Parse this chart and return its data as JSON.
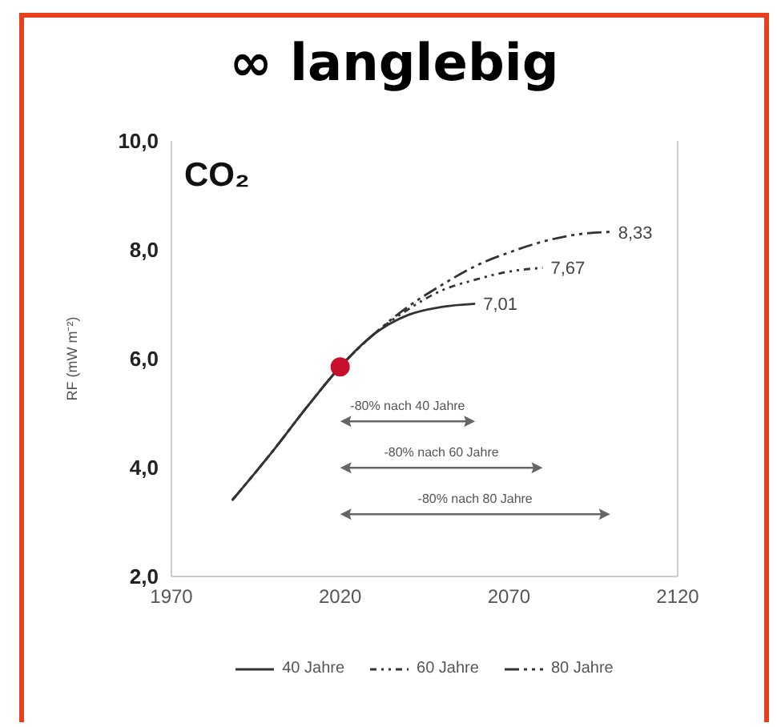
{
  "chart_data": {
    "type": "line",
    "title": "∞ langlebig",
    "subtitle": "CO₂",
    "ylabel": "RF (mW m⁻²)",
    "xlim": [
      1970,
      2120
    ],
    "xticks": [
      1970,
      2020,
      2070,
      2120
    ],
    "ylim": [
      2,
      10
    ],
    "yticks": [
      {
        "value": 2,
        "label": "2,0"
      },
      {
        "value": 4,
        "label": "4,0"
      },
      {
        "value": 6,
        "label": "6,0"
      },
      {
        "value": 8,
        "label": "8,0"
      },
      {
        "value": 10,
        "label": "10,0"
      }
    ],
    "legend": "bottom",
    "marker": "none",
    "series": [
      {
        "name": "40 Jahre",
        "color": "#333333",
        "line_style": "solid",
        "x": [
          1988,
          2000,
          2010,
          2020,
          2030,
          2040,
          2050,
          2060
        ],
        "values": [
          3.4,
          4.3,
          5.1,
          5.85,
          6.45,
          6.8,
          6.95,
          7.01
        ],
        "value_labels": [
          null,
          null,
          null,
          null,
          null,
          null,
          null,
          "7,01"
        ]
      },
      {
        "name": "60 Jahre",
        "color": "#333333",
        "line_style": "dotted",
        "x": [
          1988,
          2000,
          2010,
          2020,
          2030,
          2040,
          2050,
          2060,
          2070,
          2080
        ],
        "values": [
          3.4,
          4.3,
          5.1,
          5.85,
          6.45,
          6.9,
          7.25,
          7.45,
          7.6,
          7.67
        ],
        "value_labels": [
          null,
          null,
          null,
          null,
          null,
          null,
          null,
          null,
          null,
          "7,67"
        ]
      },
      {
        "name": "80 Jahre",
        "color": "#333333",
        "line_style": "dashed",
        "x": [
          1988,
          2000,
          2010,
          2020,
          2030,
          2040,
          2050,
          2060,
          2070,
          2080,
          2090,
          2100
        ],
        "values": [
          3.4,
          4.3,
          5.1,
          5.85,
          6.45,
          6.95,
          7.35,
          7.7,
          7.95,
          8.15,
          8.28,
          8.33
        ],
        "value_labels": [
          null,
          null,
          null,
          null,
          null,
          null,
          null,
          null,
          null,
          null,
          null,
          "8,33"
        ]
      },
      {
        "type": "scatter",
        "color": "#c8102e",
        "marker": "circle",
        "x": [
          2020
        ],
        "values": [
          5.85
        ]
      }
    ],
    "annotations": [
      "-80% nach 40 Jahre",
      "-80% nach 60 Jahre",
      "-80% nach 80 Jahre"
    ]
  }
}
